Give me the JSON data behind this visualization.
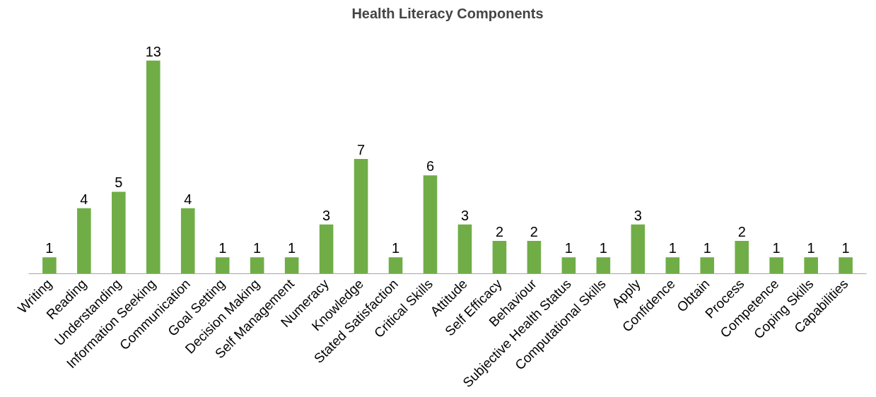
{
  "chart_data": {
    "type": "bar",
    "title": "Health Literacy Components",
    "categories": [
      "Writing",
      "Reading",
      "Understanding",
      "Information Seeking",
      "Communication",
      "Goal Setting",
      "Decision Making",
      "Self Management",
      "Numeracy",
      "Knowledge",
      "Stated Satisfaction",
      "Critical Skills",
      "Attitude",
      "Self Efficacy",
      "Behaviour",
      "Subjective Health Status",
      "Computational Skills",
      "Apply",
      "Confidence",
      "Obtain",
      "Process",
      "Competence",
      "Coping Skills",
      "Capabilities"
    ],
    "values": [
      1,
      4,
      5,
      13,
      4,
      1,
      1,
      1,
      3,
      7,
      1,
      6,
      3,
      2,
      2,
      1,
      1,
      3,
      1,
      1,
      2,
      1,
      1,
      1
    ],
    "color": "#70ad47",
    "data_labels": true
  }
}
